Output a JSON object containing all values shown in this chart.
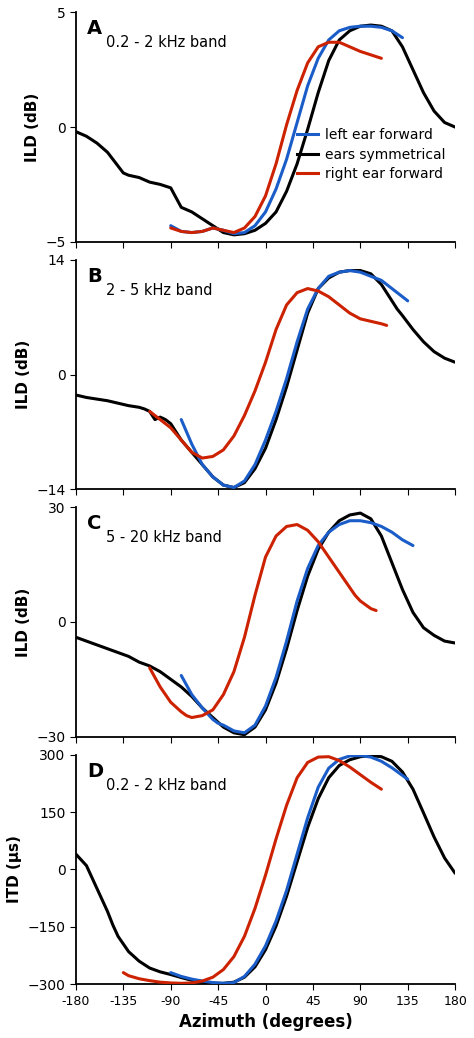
{
  "panels": [
    {
      "label": "A",
      "band": "0.2 - 2 kHz band",
      "ylabel": "ILD (dB)",
      "ylim": [
        -5,
        5
      ],
      "yticks": [
        -5,
        0,
        5
      ],
      "show_legend": true,
      "black": {
        "x": [
          -180,
          -170,
          -160,
          -150,
          -145,
          -140,
          -135,
          -130,
          -120,
          -110,
          -100,
          -90,
          -80,
          -70,
          -60,
          -50,
          -40,
          -30,
          -20,
          -10,
          0,
          10,
          20,
          30,
          40,
          50,
          60,
          70,
          80,
          90,
          100,
          110,
          120,
          130,
          140,
          150,
          160,
          170,
          180
        ],
        "y": [
          -0.2,
          -0.4,
          -0.7,
          -1.1,
          -1.4,
          -1.7,
          -2.0,
          -2.1,
          -2.2,
          -2.4,
          -2.5,
          -2.65,
          -3.5,
          -3.7,
          -4.0,
          -4.3,
          -4.6,
          -4.7,
          -4.65,
          -4.5,
          -4.2,
          -3.7,
          -2.8,
          -1.6,
          -0.1,
          1.5,
          2.9,
          3.8,
          4.2,
          4.4,
          4.45,
          4.4,
          4.2,
          3.5,
          2.5,
          1.5,
          0.7,
          0.2,
          0.0
        ]
      },
      "blue": {
        "x": [
          -90,
          -80,
          -70,
          -60,
          -50,
          -40,
          -30,
          -20,
          -10,
          0,
          10,
          20,
          30,
          40,
          50,
          60,
          70,
          80,
          90,
          100,
          110,
          120,
          130
        ],
        "y": [
          -4.3,
          -4.55,
          -4.6,
          -4.55,
          -4.4,
          -4.5,
          -4.65,
          -4.6,
          -4.3,
          -3.7,
          -2.7,
          -1.4,
          0.2,
          1.8,
          3.0,
          3.8,
          4.2,
          4.35,
          4.4,
          4.4,
          4.35,
          4.2,
          3.9
        ]
      },
      "red": {
        "x": [
          -90,
          -80,
          -70,
          -60,
          -50,
          -40,
          -30,
          -20,
          -10,
          0,
          10,
          20,
          30,
          40,
          50,
          60,
          70,
          80,
          90,
          100,
          110
        ],
        "y": [
          -4.4,
          -4.55,
          -4.6,
          -4.55,
          -4.4,
          -4.5,
          -4.6,
          -4.4,
          -3.9,
          -3.0,
          -1.6,
          0.1,
          1.6,
          2.8,
          3.5,
          3.7,
          3.7,
          3.5,
          3.3,
          3.15,
          3.0
        ]
      }
    },
    {
      "label": "B",
      "band": "2 - 5 kHz band",
      "ylabel": "ILD (dB)",
      "ylim": [
        -14,
        14
      ],
      "yticks": [
        -14,
        0,
        14
      ],
      "show_legend": false,
      "black": {
        "x": [
          -180,
          -170,
          -160,
          -150,
          -140,
          -130,
          -120,
          -115,
          -110,
          -105,
          -100,
          -95,
          -90,
          -80,
          -70,
          -60,
          -50,
          -40,
          -30,
          -20,
          -10,
          0,
          10,
          20,
          30,
          40,
          50,
          60,
          70,
          80,
          90,
          100,
          110,
          120,
          125,
          130,
          140,
          150,
          160,
          170,
          180
        ],
        "y": [
          -2.5,
          -2.8,
          -3.0,
          -3.2,
          -3.5,
          -3.8,
          -4.0,
          -4.2,
          -4.5,
          -5.5,
          -5.2,
          -5.5,
          -6.0,
          -8.0,
          -9.5,
          -11.0,
          -12.5,
          -13.5,
          -13.8,
          -13.2,
          -11.5,
          -9.0,
          -5.5,
          -1.5,
          3.0,
          7.5,
          10.5,
          11.8,
          12.5,
          12.7,
          12.7,
          12.3,
          11.0,
          9.0,
          8.0,
          7.2,
          5.5,
          4.0,
          2.8,
          2.0,
          1.5
        ]
      },
      "blue": {
        "x": [
          -80,
          -70,
          -60,
          -50,
          -40,
          -30,
          -20,
          -10,
          0,
          10,
          20,
          30,
          40,
          50,
          60,
          70,
          80,
          90,
          100,
          110,
          120,
          130,
          135
        ],
        "y": [
          -5.5,
          -8.5,
          -11.0,
          -12.5,
          -13.5,
          -13.8,
          -13.0,
          -11.0,
          -8.0,
          -4.5,
          -0.5,
          4.0,
          8.0,
          10.5,
          12.0,
          12.5,
          12.7,
          12.5,
          12.0,
          11.5,
          10.5,
          9.5,
          9.0
        ]
      },
      "red": {
        "x": [
          -110,
          -100,
          -90,
          -80,
          -70,
          -60,
          -50,
          -40,
          -30,
          -20,
          -10,
          0,
          10,
          20,
          30,
          40,
          50,
          60,
          70,
          80,
          90,
          100,
          110,
          115
        ],
        "y": [
          -4.5,
          -5.5,
          -6.5,
          -8.0,
          -9.5,
          -10.2,
          -10.0,
          -9.2,
          -7.5,
          -5.0,
          -2.0,
          1.5,
          5.5,
          8.5,
          10.0,
          10.5,
          10.2,
          9.5,
          8.5,
          7.5,
          6.8,
          6.5,
          6.2,
          6.0
        ]
      }
    },
    {
      "label": "C",
      "band": "5 - 20 kHz band",
      "ylabel": "ILD (dB)",
      "ylim": [
        -30,
        30
      ],
      "yticks": [
        -30,
        0,
        30
      ],
      "show_legend": false,
      "black": {
        "x": [
          -180,
          -170,
          -160,
          -150,
          -145,
          -140,
          -130,
          -120,
          -110,
          -100,
          -90,
          -80,
          -70,
          -60,
          -50,
          -40,
          -30,
          -20,
          -10,
          0,
          10,
          20,
          30,
          40,
          50,
          60,
          70,
          80,
          90,
          100,
          110,
          120,
          130,
          140,
          150,
          160,
          170,
          180
        ],
        "y": [
          -4.0,
          -5.0,
          -6.0,
          -7.0,
          -7.5,
          -8.0,
          -9.0,
          -10.5,
          -11.5,
          -13.0,
          -15.0,
          -17.0,
          -19.5,
          -22.5,
          -25.0,
          -27.5,
          -29.0,
          -29.5,
          -27.5,
          -23.0,
          -16.0,
          -7.0,
          3.0,
          12.0,
          19.0,
          23.5,
          26.5,
          28.0,
          28.5,
          27.0,
          22.5,
          15.5,
          8.5,
          2.5,
          -1.5,
          -3.5,
          -5.0,
          -5.5
        ]
      },
      "blue": {
        "x": [
          -80,
          -70,
          -60,
          -50,
          -45,
          -40,
          -30,
          -20,
          -10,
          0,
          10,
          20,
          30,
          40,
          50,
          60,
          70,
          80,
          90,
          100,
          110,
          120,
          130,
          140
        ],
        "y": [
          -14.0,
          -19.0,
          -22.5,
          -25.5,
          -26.5,
          -27.0,
          -28.5,
          -29.0,
          -27.0,
          -22.0,
          -14.5,
          -5.0,
          5.5,
          14.0,
          20.0,
          23.5,
          25.5,
          26.5,
          26.5,
          26.0,
          25.0,
          23.5,
          21.5,
          20.0
        ]
      },
      "red": {
        "x": [
          -110,
          -100,
          -90,
          -80,
          -75,
          -70,
          -60,
          -50,
          -40,
          -30,
          -20,
          -10,
          0,
          10,
          20,
          30,
          40,
          50,
          60,
          70,
          80,
          85,
          90,
          95,
          100,
          105
        ],
        "y": [
          -12.0,
          -17.0,
          -21.0,
          -23.5,
          -24.5,
          -25.0,
          -24.5,
          -23.0,
          -19.0,
          -13.0,
          -4.0,
          7.0,
          17.0,
          22.5,
          25.0,
          25.5,
          24.0,
          21.0,
          17.0,
          13.0,
          9.0,
          7.0,
          5.5,
          4.5,
          3.5,
          3.0
        ]
      }
    },
    {
      "label": "D",
      "band": "0.2 - 2 kHz band",
      "ylabel": "ITD (µs)",
      "ylim": [
        -300,
        300
      ],
      "yticks": [
        -300,
        -150,
        0,
        150,
        300
      ],
      "show_legend": false,
      "black": {
        "x": [
          -180,
          -170,
          -160,
          -150,
          -145,
          -140,
          -130,
          -120,
          -110,
          -100,
          -90,
          -80,
          -70,
          -60,
          -50,
          -40,
          -30,
          -20,
          -10,
          0,
          10,
          20,
          30,
          40,
          50,
          60,
          70,
          80,
          90,
          100,
          110,
          120,
          130,
          140,
          150,
          160,
          170,
          180
        ],
        "y": [
          40.0,
          10.0,
          -50.0,
          -110.0,
          -145.0,
          -175.0,
          -215.0,
          -240.0,
          -258.0,
          -268.0,
          -275.0,
          -283.0,
          -290.0,
          -295.0,
          -298.0,
          -298.0,
          -295.0,
          -282.0,
          -255.0,
          -210.0,
          -148.0,
          -70.0,
          20.0,
          110.0,
          185.0,
          240.0,
          272.0,
          287.0,
          295.0,
          298.0,
          295.0,
          283.0,
          255.0,
          210.0,
          148.0,
          85.0,
          30.0,
          -10.0
        ]
      },
      "blue": {
        "x": [
          -90,
          -80,
          -70,
          -60,
          -50,
          -40,
          -30,
          -20,
          -10,
          0,
          10,
          20,
          30,
          40,
          50,
          60,
          70,
          80,
          90,
          100,
          110,
          120,
          130,
          135
        ],
        "y": [
          -270.0,
          -280.0,
          -287.0,
          -292.0,
          -296.0,
          -298.0,
          -296.0,
          -280.0,
          -248.0,
          -200.0,
          -135.0,
          -55.0,
          40.0,
          135.0,
          215.0,
          265.0,
          288.0,
          297.0,
          298.0,
          294.0,
          283.0,
          266.0,
          246.0,
          236.0
        ]
      },
      "red": {
        "x": [
          -135,
          -130,
          -120,
          -110,
          -100,
          -90,
          -80,
          -70,
          -60,
          -50,
          -40,
          -30,
          -20,
          -10,
          0,
          10,
          20,
          30,
          40,
          50,
          60,
          70,
          80,
          90,
          100,
          110
        ],
        "y": [
          -270.0,
          -278.0,
          -286.0,
          -291.0,
          -295.0,
          -297.0,
          -298.0,
          -297.0,
          -292.0,
          -282.0,
          -262.0,
          -228.0,
          -175.0,
          -102.0,
          -15.0,
          80.0,
          168.0,
          240.0,
          280.0,
          294.0,
          295.0,
          285.0,
          268.0,
          248.0,
          228.0,
          210.0
        ]
      }
    }
  ],
  "xticks": [
    -180,
    -135,
    -90,
    -45,
    0,
    45,
    90,
    135,
    180
  ],
  "xlabel": "Azimuth (degrees)",
  "line_width": 2.2,
  "colors": {
    "black": "#000000",
    "blue": "#1a5cc8",
    "red": "#cc2200"
  },
  "legend_labels": [
    "left ear forward",
    "ears symmetrical",
    "right ear forward"
  ]
}
